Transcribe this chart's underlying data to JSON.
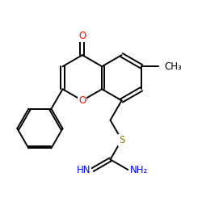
{
  "background_color": "#ffffff",
  "atom_colors": {
    "O": "#ff0000",
    "S": "#808000",
    "N": "#0000ff",
    "C": "#000000"
  },
  "bond_color": "#000000",
  "bond_width": 1.4,
  "figsize": [
    2.5,
    2.5
  ],
  "dpi": 100,
  "xlim": [
    0,
    10
  ],
  "ylim": [
    0,
    10
  ]
}
